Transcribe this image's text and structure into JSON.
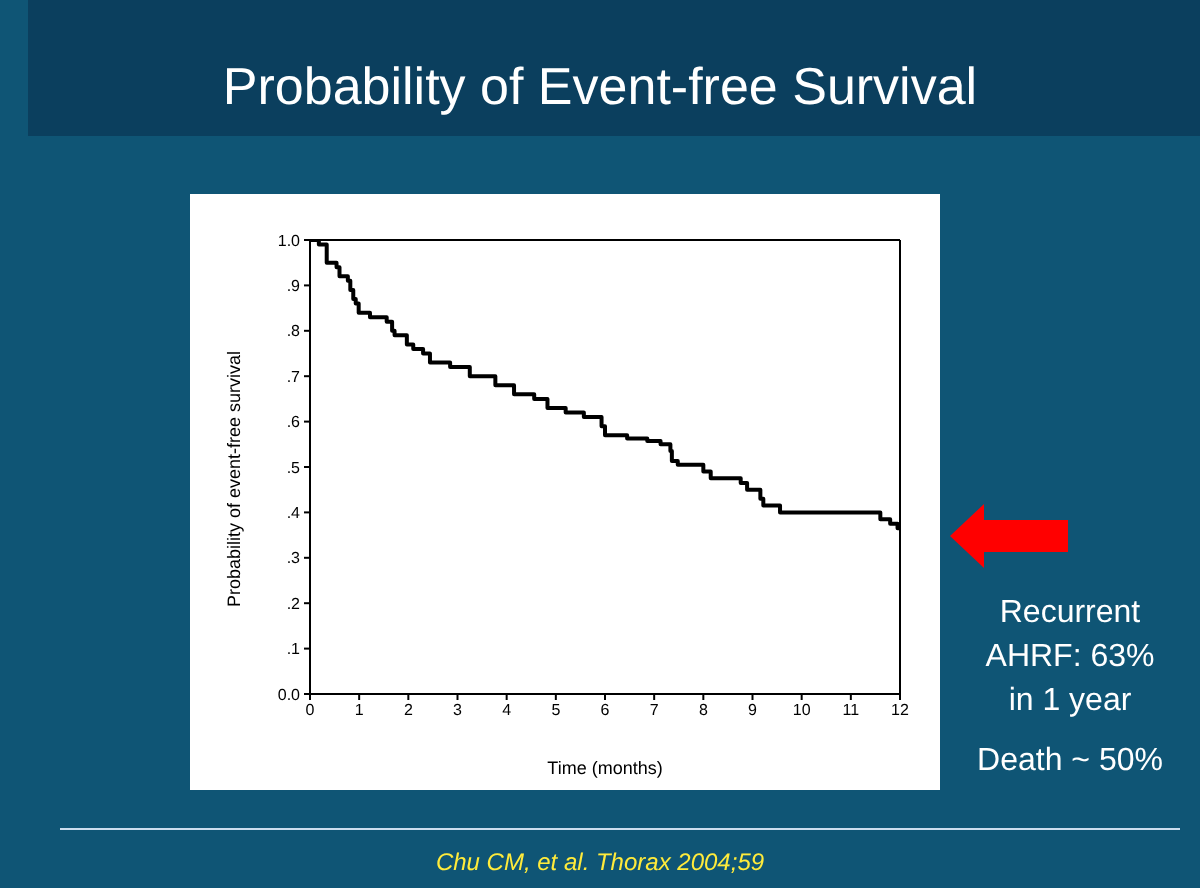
{
  "chart_data": {
    "type": "step",
    "title": "Probability of Event-free Survival",
    "xlabel": "Time (months)",
    "ylabel": "Probability of event-free survival",
    "x": [
      0,
      0.18,
      0.34,
      0.54,
      0.6,
      0.77,
      0.82,
      0.88,
      0.93,
      0.99,
      1.22,
      1.56,
      1.67,
      1.72,
      1.97,
      2.1,
      2.3,
      2.44,
      2.85,
      3.25,
      3.77,
      4.15,
      4.56,
      4.83,
      5.2,
      5.57,
      5.93,
      6.0,
      6.45,
      6.86,
      7.13,
      7.33,
      7.36,
      7.48,
      8.0,
      8.15,
      8.76,
      8.89,
      9.16,
      9.22,
      9.56,
      11.6,
      11.8,
      11.95,
      12
    ],
    "series": [
      {
        "color": "#000000",
        "values": [
          1.0,
          0.99,
          0.95,
          0.94,
          0.92,
          0.91,
          0.89,
          0.87,
          0.86,
          0.84,
          0.83,
          0.82,
          0.8,
          0.79,
          0.77,
          0.76,
          0.75,
          0.73,
          0.72,
          0.7,
          0.68,
          0.66,
          0.65,
          0.63,
          0.62,
          0.61,
          0.59,
          0.57,
          0.563,
          0.557,
          0.55,
          0.535,
          0.513,
          0.505,
          0.49,
          0.475,
          0.465,
          0.45,
          0.43,
          0.415,
          0.4,
          0.385,
          0.375,
          0.365,
          0.365
        ]
      }
    ],
    "xlim": [
      0,
      12
    ],
    "xticks": [
      0,
      1,
      2,
      3,
      4,
      5,
      6,
      7,
      8,
      9,
      10,
      11,
      12
    ],
    "ylim": [
      0,
      1
    ],
    "yticks": [
      {
        "value": 0,
        "label": "0.0"
      },
      {
        "value": 0.1,
        "label": ".1"
      },
      {
        "value": 0.2,
        "label": ".2"
      },
      {
        "value": 0.3,
        "label": ".3"
      },
      {
        "value": 0.4,
        "label": ".4"
      },
      {
        "value": 0.5,
        "label": ".5"
      },
      {
        "value": 0.6,
        "label": ".6"
      },
      {
        "value": 0.7,
        "label": ".7"
      },
      {
        "value": 0.8,
        "label": ".8"
      },
      {
        "value": 0.9,
        "label": ".9"
      },
      {
        "value": 1,
        "label": "1.0"
      }
    ],
    "grid": false,
    "legend": false,
    "marker": "none",
    "line_style": "solid",
    "annotations": [
      "Recurrent AHRF: 63% in 1 year",
      "Death ~ 50%",
      "Chu CM, et al. Thorax 2004;59"
    ]
  }
}
